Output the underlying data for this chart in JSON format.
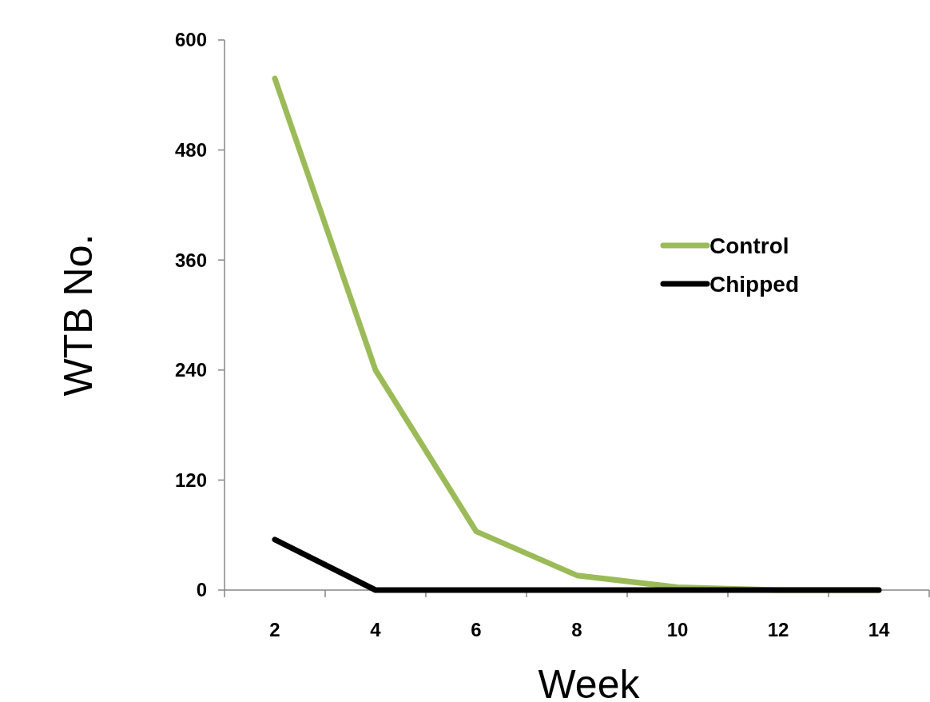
{
  "chart_data": {
    "type": "line",
    "xlabel": "Week",
    "ylabel": "WTB No.",
    "categories": [
      "2",
      "4",
      "6",
      "8",
      "10",
      "12",
      "14"
    ],
    "series": [
      {
        "name": "Control",
        "color": "#9bbb59",
        "values": [
          558,
          240,
          64,
          16,
          3,
          0,
          0
        ]
      },
      {
        "name": "Chipped",
        "color": "#000000",
        "values": [
          55,
          0,
          0,
          0,
          0,
          0,
          0
        ]
      }
    ],
    "ylim": [
      0,
      600
    ],
    "yticks": [
      0,
      120,
      240,
      360,
      480,
      600
    ],
    "grid": false,
    "legend": "right",
    "marker": "none",
    "line_style": "solid"
  }
}
